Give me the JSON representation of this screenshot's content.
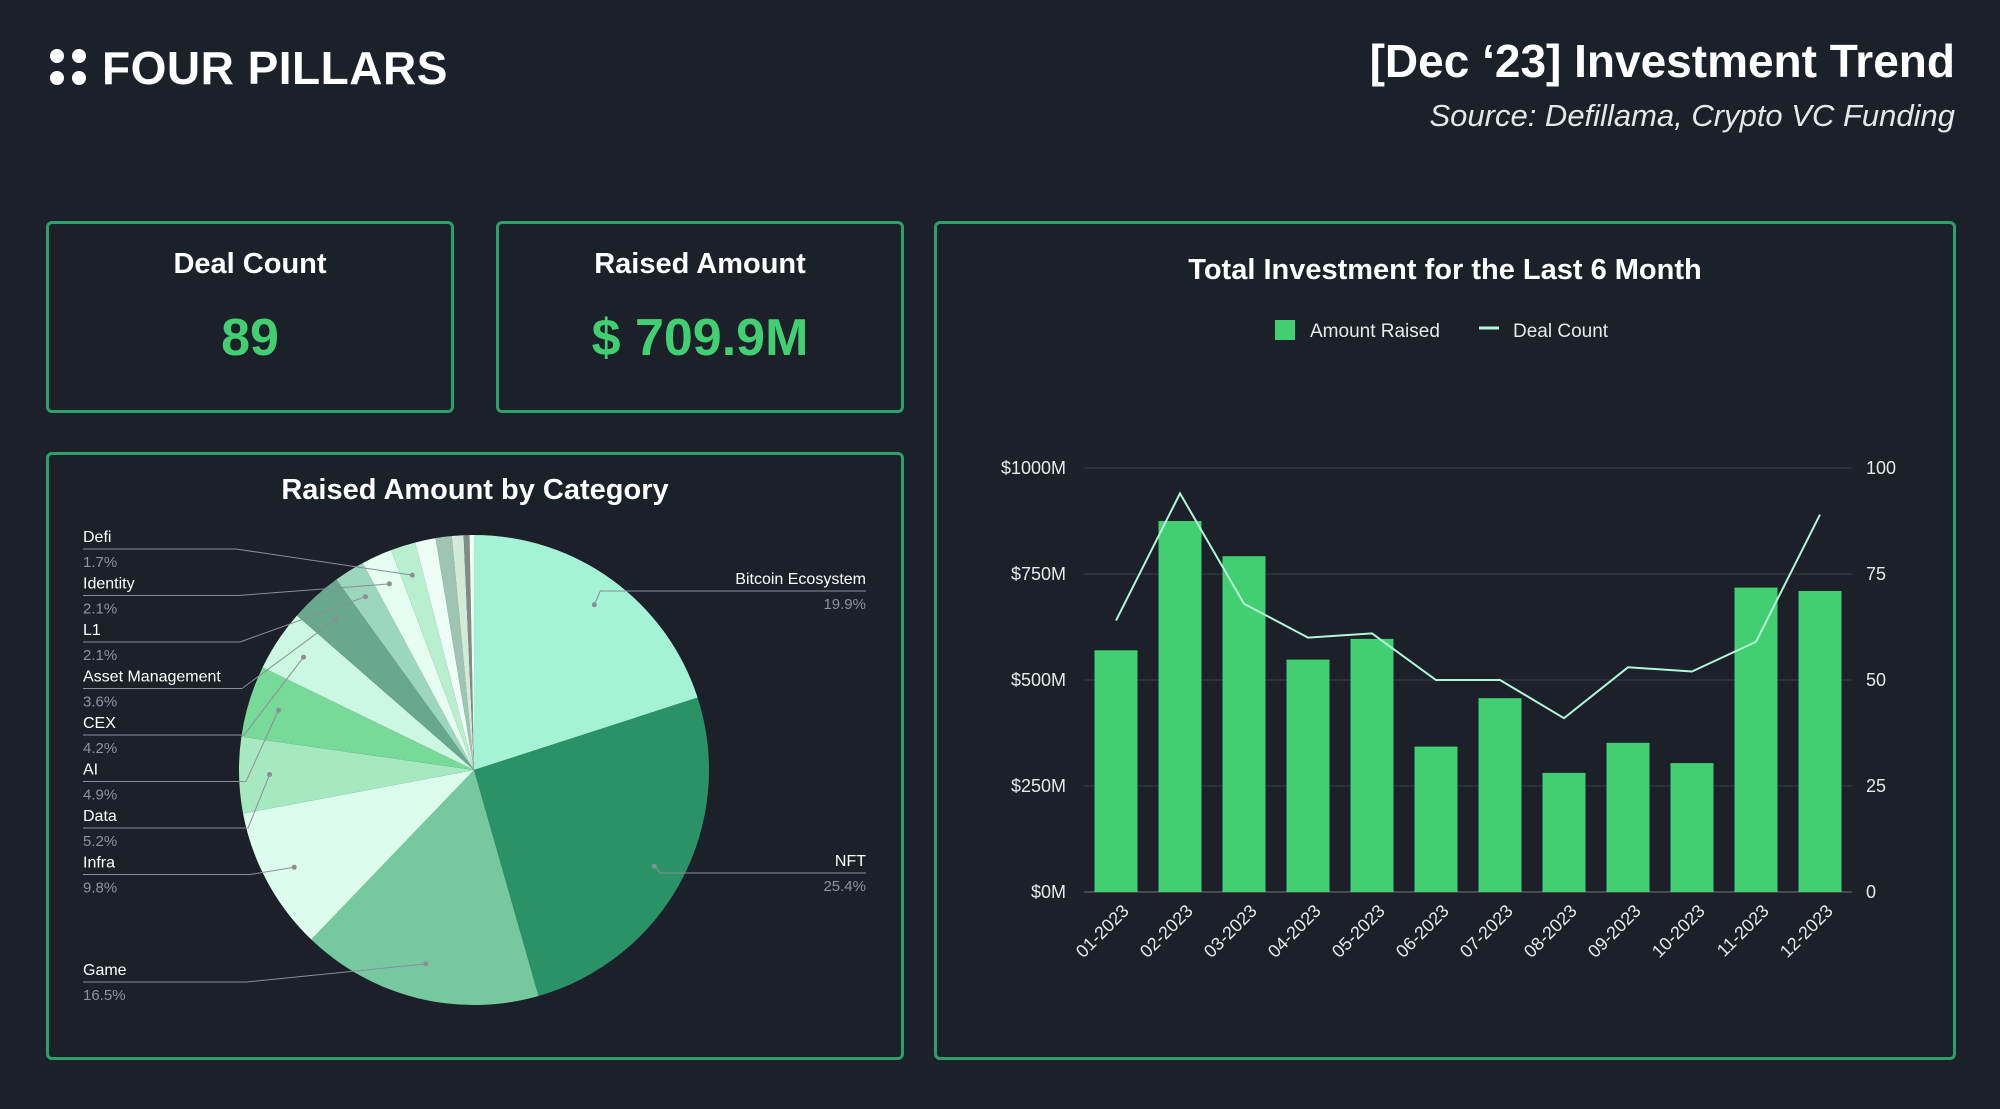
{
  "brand": {
    "name": "FOUR PILLARS"
  },
  "header": {
    "title": "[Dec ‘23] Investment Trend",
    "subtitle": "Source: Defillama, Crypto VC Funding"
  },
  "kpis": {
    "deal_count": {
      "label": "Deal Count",
      "value": "89"
    },
    "raised_amount": {
      "label": "Raised Amount",
      "value": "$ 709.9M"
    }
  },
  "colors": {
    "background": "#1b2029",
    "panel_border": "#2e9e6b",
    "accent": "#42cf72",
    "bar": "#42cf72",
    "line": "#b4f5d8"
  },
  "chart_data": [
    {
      "type": "pie",
      "title": "Raised Amount by Category",
      "slices": [
        {
          "label": "Bitcoin Ecosystem",
          "pct_label": "19.9%",
          "value": 19.9,
          "color": "#a5f3d7"
        },
        {
          "label": "NFT",
          "pct_label": "25.4%",
          "value": 25.4,
          "color": "#2a9266"
        },
        {
          "label": "Game",
          "pct_label": "16.5%",
          "value": 16.5,
          "color": "#76c99e"
        },
        {
          "label": "Infra",
          "pct_label": "9.8%",
          "value": 9.8,
          "color": "#dcfcee"
        },
        {
          "label": "Data",
          "pct_label": "5.2%",
          "value": 5.2,
          "color": "#a6e8bf"
        },
        {
          "label": "AI",
          "pct_label": "4.9%",
          "value": 4.9,
          "color": "#78da98"
        },
        {
          "label": "CEX",
          "pct_label": "4.2%",
          "value": 4.2,
          "color": "#ccf7e3"
        },
        {
          "label": "Asset Management",
          "pct_label": "3.6%",
          "value": 3.6,
          "color": "#69a88e"
        },
        {
          "label": "L1",
          "pct_label": "2.1%",
          "value": 2.1,
          "color": "#9dd6bf"
        },
        {
          "label": "Identity",
          "pct_label": "2.1%",
          "value": 2.1,
          "color": "#e6fdf1"
        },
        {
          "label": "Defi",
          "pct_label": "1.7%",
          "value": 1.7,
          "color": "#b8efcf"
        },
        {
          "value": 1.4,
          "color": "#ecfef5"
        },
        {
          "value": 1.1,
          "color": "#9fc4b4"
        },
        {
          "value": 0.8,
          "color": "#d2ead9"
        },
        {
          "value": 0.4,
          "color": "#7f8f88"
        },
        {
          "value": 0.3,
          "color": "#f2fff9"
        }
      ]
    },
    {
      "type": "bar",
      "title": "Total Investment for the Last 6 Month",
      "categories": [
        "01-2023",
        "02-2023",
        "03-2023",
        "04-2023",
        "05-2023",
        "06-2023",
        "07-2023",
        "08-2023",
        "09-2023",
        "10-2023",
        "11-2023",
        "12-2023"
      ],
      "series": [
        {
          "name": "Amount Raised",
          "type": "bar",
          "axis": "left",
          "values": [
            570,
            875,
            792,
            548,
            597,
            343,
            457,
            281,
            352,
            304,
            718,
            710
          ]
        },
        {
          "name": "Deal Count",
          "type": "line",
          "axis": "right",
          "values": [
            64,
            94,
            68,
            60,
            61,
            50,
            50,
            41,
            53,
            52,
            59,
            89
          ]
        }
      ],
      "y_left": {
        "min": 0,
        "max": 1000,
        "ticks": [
          "$0M",
          "$250M",
          "$500M",
          "$750M",
          "$1000M"
        ]
      },
      "y_right": {
        "min": 0,
        "max": 100,
        "ticks": [
          "0",
          "25",
          "50",
          "75",
          "100"
        ]
      },
      "grid": true,
      "legend": "top-center"
    }
  ]
}
